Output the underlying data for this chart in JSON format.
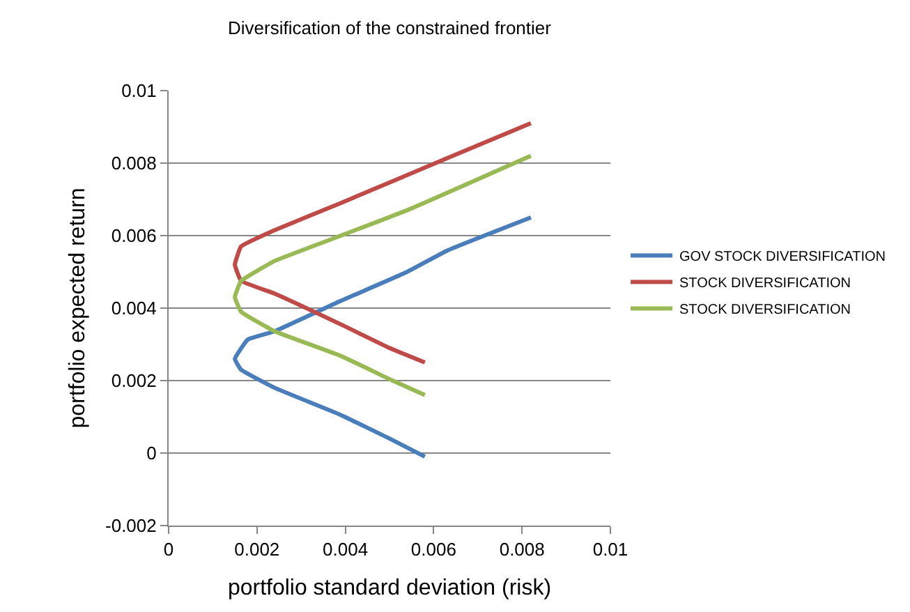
{
  "chart_data": {
    "type": "line",
    "title": "Diversification of the constrained frontier",
    "xlabel": "portfolio standard deviation (risk)",
    "ylabel": "portfolio expected return",
    "xlim": [
      0,
      0.01
    ],
    "xticks": [
      0,
      0.002,
      0.004,
      0.006,
      0.008,
      0.01
    ],
    "ylim": [
      -0.002,
      0.01
    ],
    "yticks": [
      -0.002,
      0,
      0.002,
      0.004,
      0.006,
      0.008,
      0.01
    ],
    "grid": "y",
    "legend": "right",
    "marker": "none",
    "line_style": "solid",
    "series": [
      {
        "name": "GOV STOCK DIVERSIFICATION",
        "color": "#4a7ebb",
        "x": [
          0.0058,
          0.005,
          0.0039,
          0.0024,
          0.00164,
          0.0015,
          0.00179,
          0.0024,
          0.0039,
          0.0054,
          0.00633,
          0.0082
        ],
        "values": [
          -0.0001,
          0.0004,
          0.00105,
          0.0018,
          0.0023,
          0.0026,
          0.00313,
          0.00336,
          0.0042,
          0.005,
          0.0056,
          0.0065
        ]
      },
      {
        "name": "STOCK DIVERSIFICATION",
        "color": "#be4b48",
        "x": [
          0.0058,
          0.005,
          0.0039,
          0.0024,
          0.00164,
          0.0015,
          0.00164,
          0.0024,
          0.0039,
          0.00633,
          0.0082
        ],
        "values": [
          0.0025,
          0.0029,
          0.00355,
          0.0044,
          0.00475,
          0.0052,
          0.0057,
          0.00615,
          0.0069,
          0.00815,
          0.0091
        ]
      },
      {
        "name": "STOCK DIVERSIFICATION",
        "color": "#98b954",
        "x": [
          0.0058,
          0.005,
          0.0039,
          0.0024,
          0.00164,
          0.0015,
          0.00164,
          0.0024,
          0.0039,
          0.0054,
          0.0082
        ],
        "values": [
          0.0016,
          0.00204,
          0.00268,
          0.00336,
          0.0039,
          0.0043,
          0.00475,
          0.0053,
          0.006,
          0.0067,
          0.0082
        ]
      }
    ]
  }
}
